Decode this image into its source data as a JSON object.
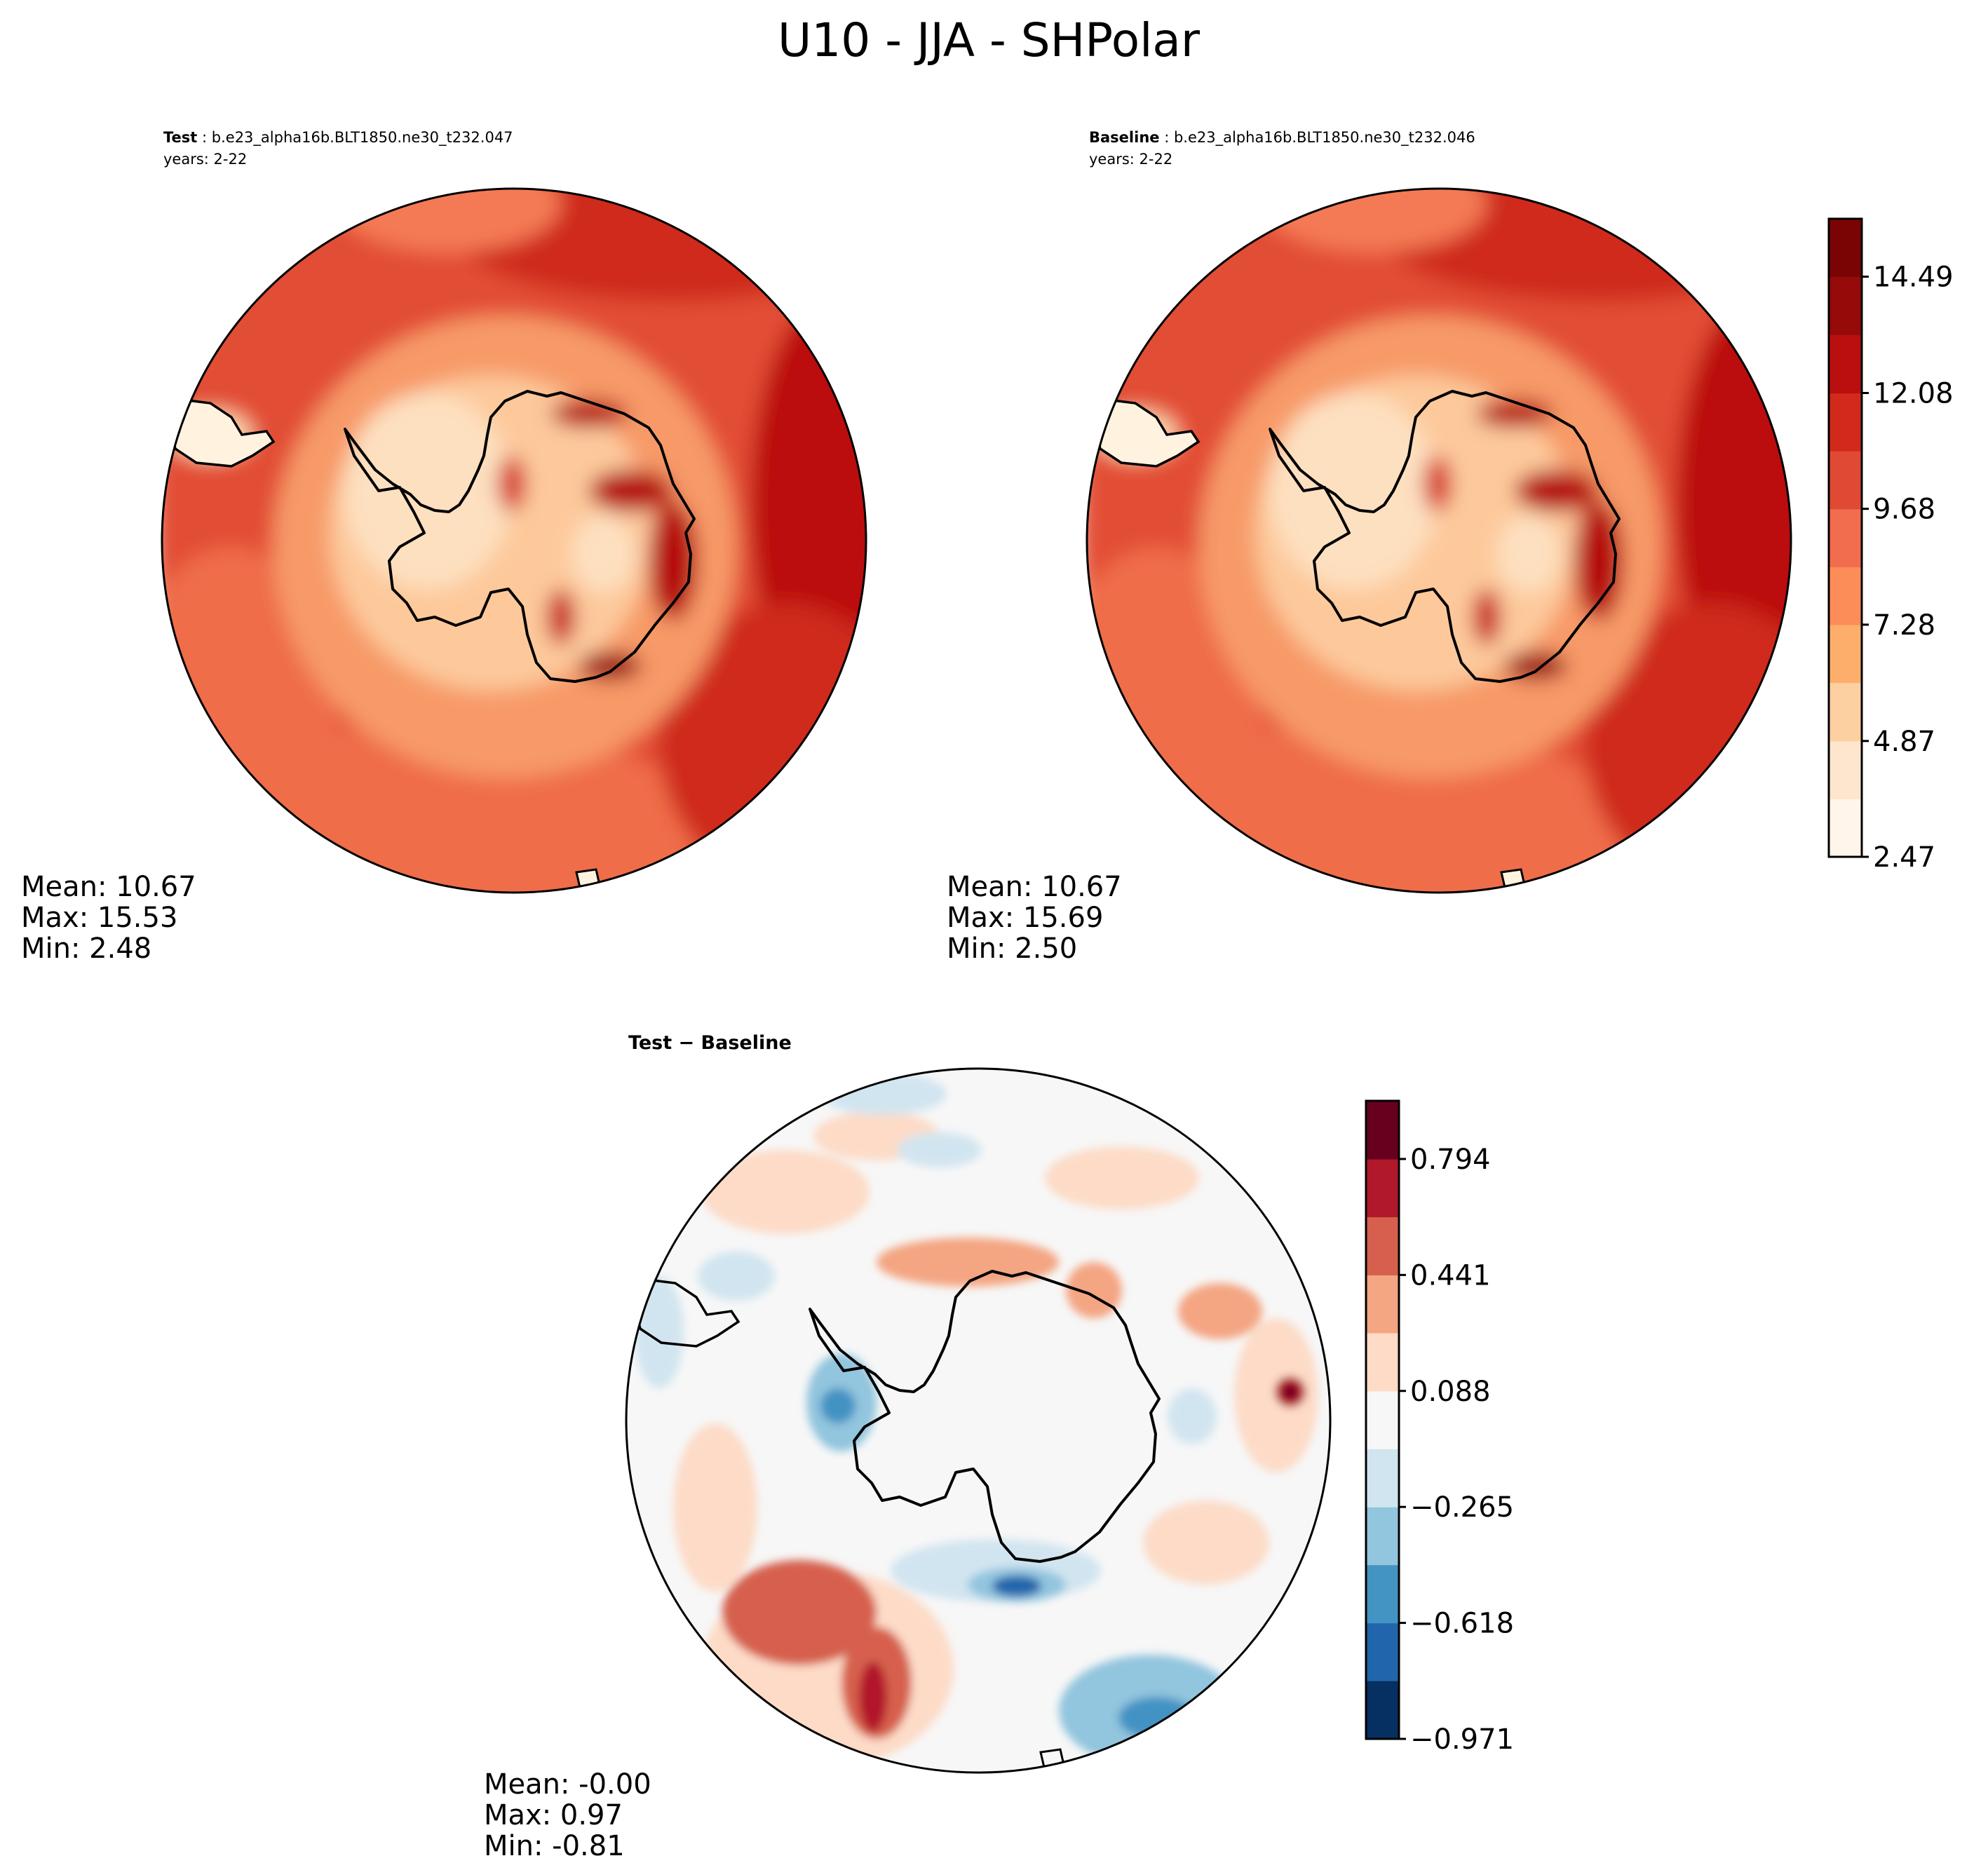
{
  "chart_data": [
    {
      "id": "test",
      "type": "heatmap",
      "projection": "south-polar-stereographic",
      "title_label": "Test",
      "title_sep": " : ",
      "case": "b.e23_alpha16b.BLT1850.ne30_t232.047",
      "years": "years: 2-22",
      "stats": {
        "mean": "Mean: 10.67",
        "max": "Max: 15.53",
        "min": "Min:  2.48"
      }
    },
    {
      "id": "baseline",
      "type": "heatmap",
      "projection": "south-polar-stereographic",
      "title_label": "Baseline",
      "title_sep": " : ",
      "case": "b.e23_alpha16b.BLT1850.ne30_t232.046",
      "years": "years: 2-22",
      "stats": {
        "mean": "Mean: 10.67",
        "max": "Max: 15.69",
        "min": "Min:  2.50"
      },
      "colorbar": {
        "ticks": [
          "2.47",
          "4.87",
          "7.28",
          "9.68",
          "12.08",
          "14.49"
        ],
        "range": [
          2.47,
          15.69
        ],
        "levels": [
          2.47,
          3.67,
          4.87,
          6.08,
          7.28,
          8.48,
          9.68,
          10.88,
          12.08,
          13.29,
          14.49,
          15.69
        ],
        "colors": [
          "#fff5eb",
          "#fee6ce",
          "#fdd0a2",
          "#fdae6b",
          "#fc8d59",
          "#f16d4d",
          "#e04a34",
          "#d12a1c",
          "#bb0f0f",
          "#960a0a",
          "#7a0404"
        ]
      }
    },
    {
      "id": "diff",
      "type": "heatmap",
      "projection": "south-polar-stereographic",
      "title": "Test − Baseline",
      "stats": {
        "mean": "Mean: -0.00",
        "max": "Max:  0.97",
        "min": "Min: -0.81"
      },
      "colorbar": {
        "ticks": [
          "−0.971",
          "−0.618",
          "−0.265",
          "0.088",
          "0.441",
          "0.794"
        ],
        "range": [
          -0.971,
          0.971
        ],
        "levels": [
          -0.971,
          -0.794,
          -0.618,
          -0.441,
          -0.265,
          -0.088,
          0.088,
          0.265,
          0.441,
          0.618,
          0.794,
          0.971
        ],
        "colors": [
          "#053061",
          "#2166ac",
          "#4393c3",
          "#92c5de",
          "#d1e5f0",
          "#f7f7f7",
          "#fddbc7",
          "#f4a582",
          "#d6604d",
          "#b2182b",
          "#67001f"
        ]
      }
    }
  ],
  "suptitle": "U10 - JJA - SHPolar"
}
